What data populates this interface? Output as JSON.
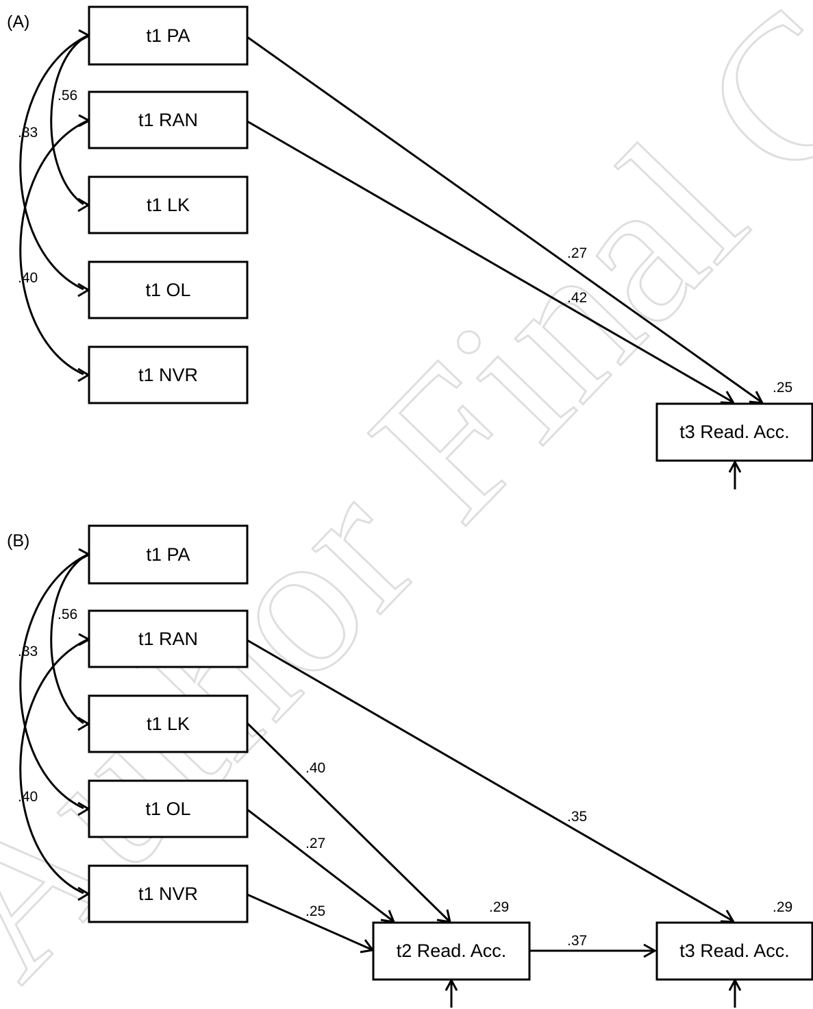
{
  "watermark": "Author Final Copy",
  "panels": [
    {
      "label": "(A)",
      "nodes": {
        "pa": "t1 PA",
        "ran": "t1 RAN",
        "lk": "t1 LK",
        "ol": "t1 OL",
        "nvr": "t1 NVR",
        "t3": "t3 Read. Acc."
      },
      "correlations": {
        "pa_lk": ".56",
        "pa_ol": ".33",
        "ran_nvr": ".40"
      },
      "paths": {
        "pa_t3": ".27",
        "ran_t3": ".42"
      },
      "r2": {
        "t3": ".25"
      }
    },
    {
      "label": "(B)",
      "nodes": {
        "pa": "t1 PA",
        "ran": "t1 RAN",
        "lk": "t1 LK",
        "ol": "t1 OL",
        "nvr": "t1 NVR",
        "t2": "t2 Read. Acc.",
        "t3": "t3 Read. Acc."
      },
      "correlations": {
        "pa_lk": ".56",
        "pa_ol": ".33",
        "ran_nvr": ".40"
      },
      "paths": {
        "lk_t2": ".40",
        "ol_t2": ".27",
        "nvr_t2": ".25",
        "ran_t3": ".35",
        "t2_t3": ".37"
      },
      "r2": {
        "t2": ".29",
        "t3": ".29"
      }
    }
  ]
}
